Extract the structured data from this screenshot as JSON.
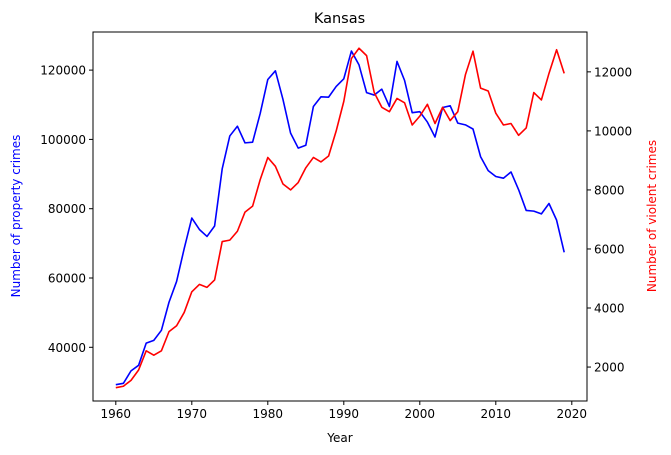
{
  "chart_data": {
    "type": "line",
    "title": "Kansas",
    "xlabel": "Year",
    "ylabel_left": "Number of property crimes",
    "ylabel_right": "Number of violent crimes",
    "xlim": [
      1957,
      2022
    ],
    "ylim_left": [
      24500,
      131000
    ],
    "ylim_right": [
      850,
      13350
    ],
    "x_ticks": [
      1960,
      1970,
      1980,
      1990,
      2000,
      2010,
      2020
    ],
    "y_ticks_left": [
      40000,
      60000,
      80000,
      100000,
      120000
    ],
    "y_ticks_right": [
      2000,
      4000,
      6000,
      8000,
      10000,
      12000
    ],
    "grid": false,
    "x": [
      1960,
      1961,
      1962,
      1963,
      1964,
      1965,
      1966,
      1967,
      1968,
      1969,
      1970,
      1971,
      1972,
      1973,
      1974,
      1975,
      1976,
      1977,
      1978,
      1979,
      1980,
      1981,
      1982,
      1983,
      1984,
      1985,
      1986,
      1987,
      1988,
      1989,
      1990,
      1991,
      1992,
      1993,
      1994,
      1995,
      1996,
      1997,
      1998,
      1999,
      2000,
      2001,
      2002,
      2003,
      2004,
      2005,
      2006,
      2007,
      2008,
      2009,
      2010,
      2011,
      2012,
      2013,
      2014,
      2015,
      2016,
      2017,
      2018,
      2019
    ],
    "series": [
      {
        "name": "Number of property crimes",
        "axis": "left",
        "color": "#0000ff",
        "values": [
          29200,
          29600,
          33200,
          34800,
          41200,
          42000,
          44900,
          53000,
          59000,
          68500,
          77300,
          74000,
          72000,
          75000,
          91500,
          101000,
          103800,
          99000,
          99200,
          107500,
          117300,
          119800,
          111500,
          101800,
          97500,
          98300,
          109500,
          112300,
          112200,
          115300,
          117500,
          125500,
          121500,
          113500,
          112800,
          114500,
          109500,
          122500,
          117000,
          107700,
          108000,
          105000,
          100700,
          109200,
          109700,
          104700,
          104200,
          103000,
          95000,
          91000,
          89300,
          88800,
          90600,
          85500,
          79500,
          79300,
          78500,
          81500,
          76700,
          67400
        ]
      },
      {
        "name": "Number of violent crimes",
        "axis": "right",
        "color": "#ff0000",
        "values": [
          1300,
          1350,
          1550,
          1900,
          2550,
          2400,
          2550,
          3200,
          3400,
          3850,
          4550,
          4800,
          4700,
          4950,
          6250,
          6300,
          6600,
          7250,
          7450,
          8350,
          9100,
          8800,
          8200,
          8000,
          8250,
          8750,
          9100,
          8950,
          9150,
          10000,
          11000,
          12450,
          12800,
          12550,
          11300,
          10800,
          10650,
          11100,
          10950,
          10200,
          10500,
          10900,
          10250,
          10800,
          10350,
          10650,
          11900,
          12700,
          11450,
          11350,
          10600,
          10200,
          10250,
          9850,
          10100,
          11300,
          11050,
          11950,
          12750,
          11950
        ]
      }
    ]
  }
}
